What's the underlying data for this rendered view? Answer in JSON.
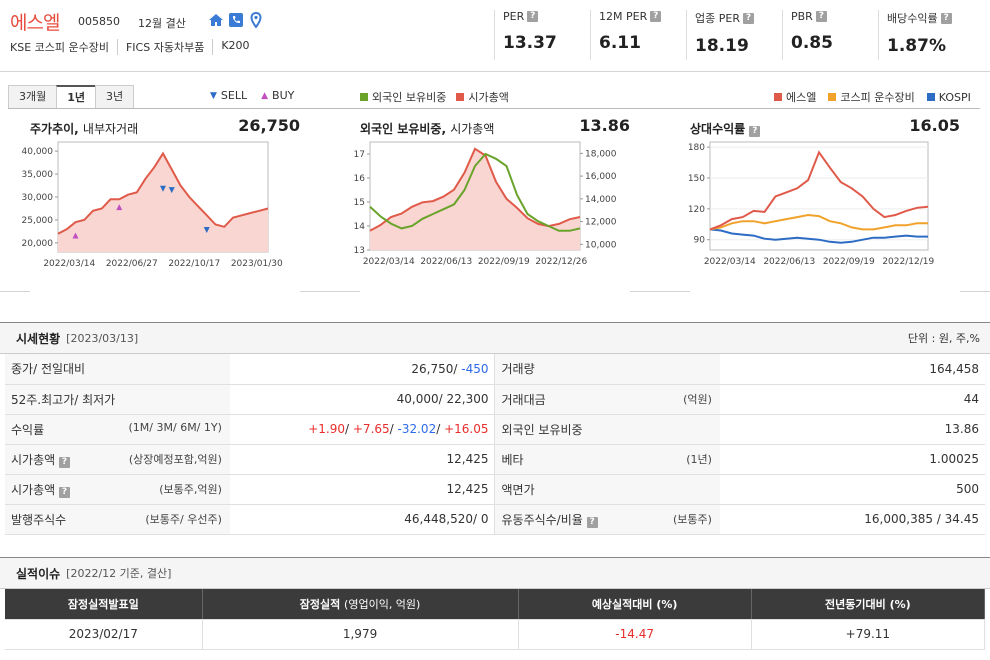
{
  "header": {
    "company_name": "에스엘",
    "code": "005850",
    "settlement": "12월 결산",
    "subinfo": [
      "KSE  코스피 운수장비",
      "FICS 자동차부품",
      "K200"
    ],
    "metrics": [
      {
        "label": "PER",
        "value": "13.37"
      },
      {
        "label": "12M PER",
        "value": "6.11"
      },
      {
        "label": "업종 PER",
        "value": "18.19"
      },
      {
        "label": "PBR",
        "value": "0.85"
      },
      {
        "label": "배당수익률",
        "value": "1.87%"
      }
    ]
  },
  "chart_section": {
    "tabs": [
      "3개월",
      "1년",
      "3년"
    ],
    "active_tab": "1년",
    "legend_trade": {
      "sell": "SELL",
      "buy": "BUY"
    },
    "legend_foreign": {
      "a": "외국인 보유비중",
      "b": "시가총액"
    },
    "legend_rel": {
      "a": "에스엘",
      "b": "코스피 운수장비",
      "c": "KOSPI"
    },
    "colors": {
      "red": "#e05a4a",
      "green": "#6aa32a",
      "orange": "#f0a22a",
      "blue": "#2d6cc4",
      "fill": "#f9d6d2"
    }
  },
  "chart_data": [
    {
      "type": "line",
      "title": "주가추이",
      "subtitle": "내부자거래",
      "value": "26,750",
      "x_ticks": [
        "2022/03/14",
        "2022/06/27",
        "2022/10/17",
        "2023/01/30"
      ],
      "y_ticks": [
        "40,000",
        "35,000",
        "30,000",
        "25,000",
        "20,000"
      ],
      "ylim": [
        18000,
        42000
      ],
      "series": [
        {
          "name": "",
          "values": [
            22000,
            23000,
            24500,
            25000,
            27000,
            27500,
            29500,
            29500,
            30500,
            31000,
            34000,
            36500,
            39500,
            36000,
            32500,
            30000,
            28000,
            26000,
            24000,
            23500,
            25500,
            26000,
            26500,
            27000,
            27500
          ]
        }
      ],
      "markers": [
        {
          "kind": "buy",
          "i": 2,
          "v": 21600
        },
        {
          "kind": "buy",
          "i": 7,
          "v": 27800
        },
        {
          "kind": "sell",
          "i": 13,
          "v": 31500
        },
        {
          "kind": "sell",
          "i": 12,
          "v": 31800
        },
        {
          "kind": "sell",
          "i": 17,
          "v": 22800
        }
      ]
    },
    {
      "type": "line",
      "title": "외국인 보유비중",
      "subtitle": "시가총액",
      "value": "13.86",
      "x_ticks": [
        "2022/03/14",
        "2022/06/13",
        "2022/09/19",
        "2022/12/26"
      ],
      "y_ticks_left": [
        "17",
        "16",
        "15",
        "14",
        "13"
      ],
      "ylim_left": [
        13,
        17.5
      ],
      "y_ticks_right": [
        "18,000",
        "16,000",
        "14,000",
        "12,000",
        "10,000"
      ],
      "ylim_right": [
        9500,
        19000
      ],
      "series": [
        {
          "name": "외국인 보유비중",
          "values": [
            14.8,
            14.4,
            14.1,
            13.9,
            14.0,
            14.3,
            14.5,
            14.7,
            14.9,
            15.5,
            16.5,
            17.0,
            16.8,
            16.5,
            15.3,
            14.5,
            14.2,
            14.0,
            13.8,
            13.8,
            13.9
          ]
        },
        {
          "name": "시가총액",
          "values": [
            11200,
            11700,
            12400,
            12700,
            13300,
            13700,
            13800,
            14200,
            14800,
            16300,
            18400,
            17800,
            15500,
            14000,
            13200,
            12300,
            11800,
            11600,
            11800,
            12200,
            12400
          ]
        }
      ]
    },
    {
      "type": "line",
      "title": "상대수익률",
      "value": "16.05",
      "x_ticks": [
        "2022/03/14",
        "2022/06/13",
        "2022/09/19",
        "2022/12/19"
      ],
      "y_ticks": [
        "180",
        "150",
        "120",
        "90"
      ],
      "ylim": [
        80,
        185
      ],
      "series": [
        {
          "name": "에스엘",
          "values": [
            100,
            104,
            110,
            112,
            118,
            117,
            132,
            136,
            140,
            148,
            175,
            160,
            146,
            140,
            132,
            120,
            112,
            114,
            118,
            121,
            122
          ]
        },
        {
          "name": "코스피 운수장비",
          "values": [
            100,
            102,
            106,
            108,
            108,
            106,
            108,
            110,
            112,
            114,
            113,
            108,
            106,
            102,
            100,
            100,
            102,
            104,
            104,
            106,
            106
          ]
        },
        {
          "name": "KOSPI",
          "values": [
            100,
            99,
            96,
            95,
            94,
            91,
            90,
            91,
            92,
            91,
            90,
            88,
            87,
            88,
            90,
            92,
            92,
            93,
            94,
            93,
            93
          ]
        }
      ]
    }
  ],
  "market": {
    "title": "시세현황",
    "date": "[2023/03/13]",
    "unit": "단위 : 원, 주,%",
    "rows": [
      {
        "l1": "종가/ 전일대비",
        "s1": "",
        "v1a": "26,750/ ",
        "v1b": "-450",
        "v1b_cls": "blue",
        "l2": "거래량",
        "s2": "",
        "v2": "164,458"
      },
      {
        "l1": "52주.최고가/ 최저가",
        "s1": "",
        "v1a": "40,000/ 22,300",
        "v1b": "",
        "v1b_cls": "",
        "l2": "거래대금",
        "s2": "(억원)",
        "v2": "44"
      },
      {
        "l1": "수익률",
        "s1": "(1M/ 3M/ 6M/ 1Y)",
        "v1a": "",
        "v1b": "",
        "v1b_cls": "",
        "l2": "외국인 보유비중",
        "s2": "",
        "v2": "13.86"
      },
      {
        "l1": "시가총액",
        "q": true,
        "s1": "(상장예정포함,억원)",
        "v1a": "12,425",
        "v1b": "",
        "v1b_cls": "",
        "l2": "베타",
        "s2": "(1년)",
        "v2": "1.00025"
      },
      {
        "l1": "시가총액",
        "q": true,
        "s1": "(보통주,억원)",
        "v1a": "12,425",
        "v1b": "",
        "v1b_cls": "",
        "l2": "액면가",
        "s2": "",
        "v2": "500"
      },
      {
        "l1": "발행주식수",
        "s1": "(보통주/ 우선주)",
        "v1a": "46,448,520/ 0",
        "v1b": "",
        "v1b_cls": "",
        "l2": "유동주식수/비율",
        "q2": true,
        "s2": "(보통주)",
        "v2": "16,000,385 / 34.45"
      }
    ],
    "returns": [
      "+1.90",
      "+7.65",
      "-32.02",
      "+16.05"
    ]
  },
  "earnings": {
    "title": "실적이슈",
    "date": "[2022/12 기준, 결산]",
    "headers": [
      "잠정실적발표일",
      "잠정실적",
      "(영업이익, 억원)",
      "예상실적대비 (%)",
      "전년동기대비 (%)"
    ],
    "row": [
      "2023/02/17",
      "1,979",
      "-14.47",
      "+79.11"
    ]
  }
}
